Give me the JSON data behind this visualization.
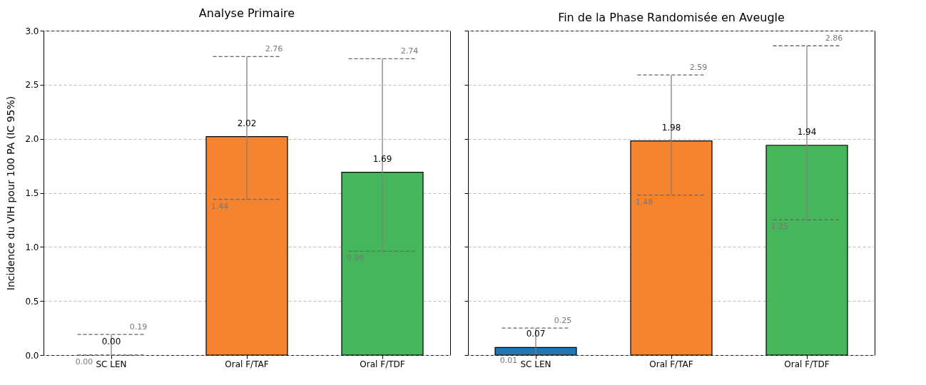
{
  "chart_data": [
    {
      "type": "bar",
      "title": "Analyse Primaire",
      "ylabel": "Incidence du VIH pour 100 PA (IC 95%)",
      "categories": [
        "SC LEN",
        "Oral F/TAF",
        "Oral F/TDF"
      ],
      "values": [
        0.0,
        2.02,
        1.69
      ],
      "value_labels": [
        "0.00",
        "2.02",
        "1.69"
      ],
      "colors": [
        "#1f77b4",
        "#f5832f",
        "#45b75a"
      ],
      "errors": [
        [
          0.0,
          0.19
        ],
        [
          1.44,
          2.76
        ],
        [
          0.96,
          2.74
        ]
      ],
      "ylim": [
        0,
        3
      ],
      "yticks": [
        {
          "value": 0,
          "label": "0.0"
        },
        0.5,
        {
          "value": 1,
          "label": "1.0"
        },
        1.5,
        {
          "value": 2,
          "label": "2.0"
        },
        2.5,
        {
          "value": 3,
          "label": "3.0"
        }
      ],
      "grid": "y",
      "legend": false,
      "annotations": [
        {
          "text": "0.00",
          "x": "SC LEN",
          "y": 0.0
        },
        {
          "text": "0.19",
          "x": "SC LEN",
          "y": 0.19
        },
        {
          "text": "1.44",
          "x": "Oral F/TAF",
          "y": 1.44
        },
        {
          "text": "2.76",
          "x": "Oral F/TAF",
          "y": 2.76
        },
        {
          "text": "0.96",
          "x": "Oral F/TDF",
          "y": 0.96
        },
        {
          "text": "2.74",
          "x": "Oral F/TDF",
          "y": 2.74
        }
      ]
    },
    {
      "type": "bar",
      "title": "Fin de la Phase Randomisée en Aveugle",
      "categories": [
        "SC LEN",
        "Oral F/TAF",
        "Oral F/TDF"
      ],
      "values": [
        0.07,
        1.98,
        1.94
      ],
      "value_labels": [
        "0.07",
        "1.98",
        "1.94"
      ],
      "colors": [
        "#1f77b4",
        "#f5832f",
        "#45b75a"
      ],
      "errors": [
        [
          0.01,
          0.25
        ],
        [
          1.48,
          2.59
        ],
        [
          1.25,
          2.86
        ]
      ],
      "ylim": [
        0,
        3
      ],
      "yticks": [
        0,
        0.5,
        1,
        1.5,
        2,
        2.5,
        3
      ],
      "grid": "y",
      "legend": false,
      "tick_labels": "x",
      "annotations": [
        {
          "text": "0.01",
          "x": "SC LEN",
          "y": 0.01
        },
        {
          "text": "0.25",
          "x": "SC LEN",
          "y": 0.25
        },
        {
          "text": "1.48",
          "x": "Oral F/TAF",
          "y": 1.48
        },
        {
          "text": "2.59",
          "x": "Oral F/TAF",
          "y": 2.59
        },
        {
          "text": "1.25",
          "x": "Oral F/TDF",
          "y": 1.25
        },
        {
          "text": "2.86",
          "x": "Oral F/TDF",
          "y": 2.86
        }
      ]
    }
  ]
}
